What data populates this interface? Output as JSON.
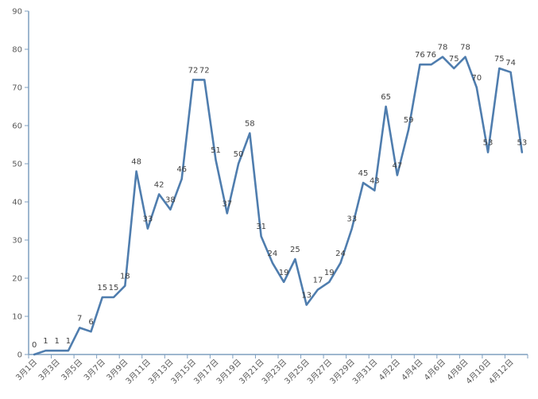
{
  "chart_data": {
    "type": "line",
    "title": "",
    "xlabel": "",
    "ylabel": "",
    "ylim": [
      0,
      90
    ],
    "yticks": [
      0,
      10,
      20,
      30,
      40,
      50,
      60,
      70,
      80,
      90
    ],
    "grid": false,
    "legend": "none",
    "line_color": "#4F7DAE",
    "axis_color": "#7F9FBF",
    "categories": [
      "3月1日",
      "3月2日",
      "3月3日",
      "3月4日",
      "3月5日",
      "3月6日",
      "3月7日",
      "3月8日",
      "3月9日",
      "3月10日",
      "3月11日",
      "3月12日",
      "3月13日",
      "3月14日",
      "3月15日",
      "3月16日",
      "3月17日",
      "3月18日",
      "3月19日",
      "3月20日",
      "3月21日",
      "3月22日",
      "3月23日",
      "3月24日",
      "3月25日",
      "3月26日",
      "3月27日",
      "3月28日",
      "3月29日",
      "3月30日",
      "3月31日",
      "4月1日",
      "4月2日",
      "4月3日",
      "4月4日",
      "4月5日",
      "4月6日",
      "4月7日",
      "4月8日",
      "4月9日",
      "4月10日",
      "4月11日",
      "4月12日",
      "4月13日"
    ],
    "tick_categories": [
      "3月1日",
      "3月3日",
      "3月5日",
      "3月7日",
      "3月9日",
      "3月11日",
      "3月13日",
      "3月15日",
      "3月17日",
      "3月19日",
      "3月21日",
      "3月23日",
      "3月25日",
      "3月27日",
      "3月29日",
      "3月31日",
      "4月2日",
      "4月4日",
      "4月6日",
      "4月8日",
      "4月10日",
      "4月12日"
    ],
    "values": [
      0,
      1,
      1,
      1,
      7,
      6,
      15,
      15,
      18,
      48,
      33,
      42,
      38,
      46,
      72,
      72,
      51,
      37,
      50,
      58,
      31,
      24,
      19,
      25,
      13,
      17,
      19,
      24,
      33,
      45,
      43,
      65,
      47,
      59,
      76,
      76,
      78,
      75,
      78,
      70,
      53,
      75,
      74,
      53
    ]
  }
}
